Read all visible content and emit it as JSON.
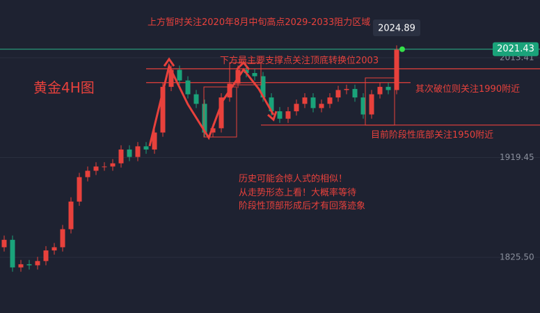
{
  "chart_data": {
    "type": "candlestick",
    "title": "黄金4H图",
    "categories": [
      null,
      null,
      null,
      null,
      null,
      null,
      null,
      null,
      null,
      null,
      null,
      null,
      null,
      null,
      null,
      null,
      null,
      null,
      null,
      null,
      null,
      null,
      null,
      null,
      null,
      null,
      null,
      null,
      null,
      null,
      null,
      null,
      null,
      null,
      null,
      null,
      null,
      null,
      null,
      null,
      null,
      null,
      null,
      null,
      null,
      null,
      null,
      null
    ],
    "open": [
      1835,
      1842,
      1816,
      1819,
      1818,
      1822,
      1832,
      1835,
      1852,
      1878,
      1901,
      1907,
      1911,
      1911,
      1914,
      1927,
      1920,
      1930,
      1927,
      1943,
      1986,
      2002,
      1992,
      1979,
      1970,
      1943,
      1947,
      1976,
      1989,
      2002,
      1999,
      1996,
      1976,
      1963,
      1956,
      1963,
      1970,
      1976,
      1966,
      1970,
      1976,
      1983,
      1984,
      1976,
      1960,
      1979,
      1986,
      1983
    ],
    "high": [
      1846,
      1846,
      1823,
      1823,
      1826,
      1836,
      1839,
      1856,
      1882,
      1905,
      1911,
      1915,
      1915,
      1918,
      1931,
      1931,
      1934,
      1934,
      1947,
      1990,
      2006,
      2006,
      1996,
      1983,
      1974,
      1951,
      1980,
      1993,
      2006,
      2006,
      2003,
      2000,
      1980,
      1967,
      1967,
      1974,
      1980,
      1980,
      1974,
      1980,
      1987,
      1988,
      1988,
      1980,
      1983,
      1990,
      1990,
      2025
    ],
    "low": [
      1831,
      1812,
      1812,
      1814,
      1814,
      1818,
      1828,
      1831,
      1848,
      1874,
      1897,
      1903,
      1907,
      1907,
      1910,
      1916,
      1916,
      1923,
      1923,
      1939,
      1982,
      1988,
      1975,
      1966,
      1939,
      1939,
      1943,
      1972,
      1985,
      1995,
      1992,
      1972,
      1959,
      1952,
      1952,
      1959,
      1966,
      1962,
      1962,
      1966,
      1972,
      1979,
      1972,
      1956,
      1956,
      1975,
      1979,
      1979
    ],
    "close": [
      1842,
      1816,
      1819,
      1818,
      1822,
      1832,
      1835,
      1852,
      1878,
      1901,
      1907,
      1911,
      1911,
      1914,
      1927,
      1920,
      1930,
      1927,
      1943,
      1986,
      2002,
      1992,
      1979,
      1970,
      1943,
      1947,
      1976,
      1989,
      2002,
      1999,
      1996,
      1976,
      1963,
      1956,
      1963,
      1970,
      1976,
      1966,
      1970,
      1976,
      1983,
      1984,
      1976,
      1960,
      1979,
      1986,
      1983,
      2021
    ],
    "up_color": "#e8413c",
    "down_color": "#1aa37a",
    "ylim": [
      1773.1,
      2067.75
    ],
    "yticks": [
      2013.41,
      1919.45,
      {
        "value": 1825.5,
        "label": "1825.50"
      }
    ],
    "last_price": 2021.43,
    "crosshair_price": 2024.89,
    "levels": [
      2003,
      1990,
      1950
    ],
    "annotations": [
      "上方暂时关注2020年8月中旬高点2029-2033阻力区域",
      "下方最主要支撑点关注顶底转换位2003",
      "其次破位则关注1990附近",
      "目前阶段性底部关注1950附近",
      "历史可能会惊人式的相似！",
      "从走势形态上看！大概率等待",
      "阶段性顶部形成后才有回落迹象"
    ]
  }
}
